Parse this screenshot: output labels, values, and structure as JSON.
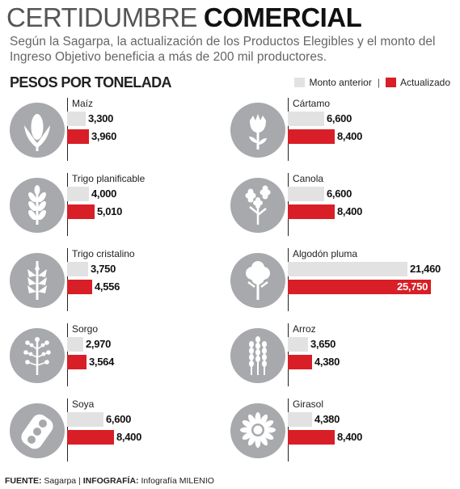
{
  "title": {
    "light": "CERTIDUMBRE",
    "bold": "COMERCIAL"
  },
  "subtitle": "Según la Sagarpa, la actualización de los Productos Elegibles y el monto del Ingreso Objetivo beneficia a más de 200 mil productores.",
  "units_heading": "PESOS POR TONELADA",
  "legend": {
    "previous": "Monto anterior",
    "separator": "|",
    "updated": "Actualizado"
  },
  "colors": {
    "previous": "#e2e2e2",
    "updated": "#d81e26",
    "icon_circle": "#a7a9ac"
  },
  "chart_data": {
    "type": "bar",
    "orientation": "horizontal",
    "categories": [
      "Maíz",
      "Trigo planificable",
      "Trigo cristalino",
      "Sorgo",
      "Soya",
      "Cártamo",
      "Canola",
      "Algodón pluma",
      "Arroz",
      "Girasol"
    ],
    "series": [
      {
        "name": "Monto anterior",
        "values": [
          3300,
          4000,
          3750,
          2970,
          6600,
          6600,
          6600,
          21460,
          3650,
          4380
        ]
      },
      {
        "name": "Actualizado",
        "values": [
          3960,
          5010,
          4556,
          3564,
          8400,
          8400,
          8400,
          25750,
          4380,
          8400
        ]
      }
    ],
    "value_labels": {
      "previous": [
        "3,300",
        "4,000",
        "3,750",
        "2,970",
        "6,600",
        "6,600",
        "6,600",
        "21,460",
        "3,650",
        "4,380"
      ],
      "updated": [
        "3,960",
        "5,010",
        "4,556",
        "3,564",
        "8,400",
        "8,400",
        "8,400",
        "25,750",
        "4,380",
        "8,400"
      ]
    },
    "icons": [
      "corn-icon",
      "wheat-icon",
      "wheat-grain-icon",
      "sorghum-icon",
      "soybean-icon",
      "safflower-icon",
      "canola-icon",
      "cotton-icon",
      "rice-icon",
      "sunflower-icon"
    ],
    "grid": false,
    "legend_position": "top-right"
  },
  "footer": {
    "source_label": "FUENTE:",
    "source": "Sagarpa",
    "sep": "|",
    "graphic_label": "INFOGRAFÍA:",
    "graphic": "Infografía MILENIO"
  }
}
